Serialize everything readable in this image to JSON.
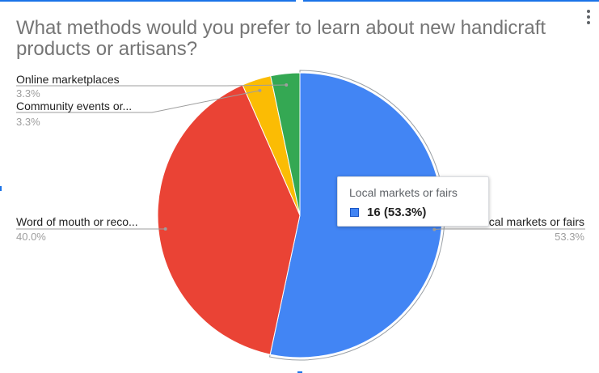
{
  "chart_data": {
    "type": "pie",
    "title": "What methods would you prefer to learn about new handicraft products or artisans?",
    "slices": [
      {
        "label": "Local markets or fairs",
        "legend_label": "Local markets or fairs",
        "count": 16,
        "percent": 53.3,
        "percent_label": "53.3%",
        "color": "#4285f4"
      },
      {
        "label": "Word of mouth or recommendations",
        "legend_label": "Word of mouth or reco...",
        "percent": 40.0,
        "percent_label": "40.0%",
        "color": "#ea4335"
      },
      {
        "label": "Community events or workshops",
        "legend_label": "Community events or...",
        "percent": 3.3,
        "percent_label": "3.3%",
        "color": "#fbbc04"
      },
      {
        "label": "Online marketplaces",
        "legend_label": "Online marketplaces",
        "percent": 3.3,
        "percent_label": "3.3%",
        "color": "#34a853"
      }
    ],
    "legend_placement": "labeled",
    "tooltip": {
      "title": "Local markets or fairs",
      "value": "16 (53.3%)"
    }
  }
}
